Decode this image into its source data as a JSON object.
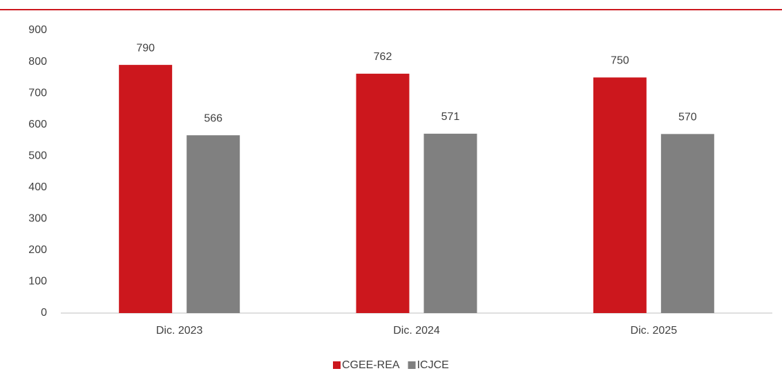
{
  "chart_data": {
    "type": "bar",
    "categories": [
      "Dic. 2023",
      "Dic. 2024",
      "Dic. 2025"
    ],
    "series": [
      {
        "name": "CGEE-REA",
        "color": "#cc171d",
        "values": [
          790,
          762,
          750
        ]
      },
      {
        "name": "ICJCE",
        "color": "#808080",
        "values": [
          566,
          571,
          570
        ]
      }
    ],
    "ylim": [
      0,
      900
    ],
    "yticks": [
      0,
      100,
      200,
      300,
      400,
      500,
      600,
      700,
      800,
      900
    ],
    "grid": false,
    "legend": "bottom"
  }
}
